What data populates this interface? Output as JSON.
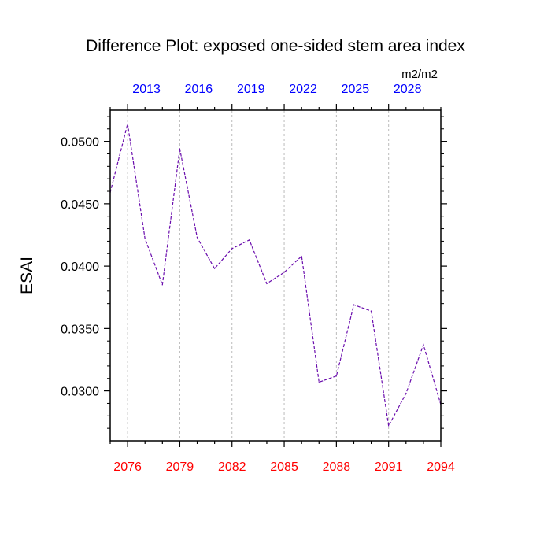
{
  "colors": {
    "bottom_axis": "#ff0000",
    "top_axis": "#0000ff",
    "series_line": "#6a0dad",
    "grid": "#bbbbbb",
    "axis": "#000000"
  },
  "chart_data": {
    "type": "line",
    "title": "Difference Plot: exposed one-sided stem area index",
    "units": "m2/m2",
    "ylabel": "ESAI",
    "xlabel": "",
    "x": [
      2075,
      2076,
      2077,
      2078,
      2079,
      2080,
      2081,
      2082,
      2083,
      2084,
      2085,
      2086,
      2087,
      2088,
      2089,
      2090,
      2091,
      2092,
      2093,
      2094
    ],
    "values": [
      0.0459,
      0.0514,
      0.0422,
      0.0385,
      0.0494,
      0.0423,
      0.0398,
      0.0414,
      0.0421,
      0.0386,
      0.0395,
      0.0408,
      0.0307,
      0.0312,
      0.0369,
      0.0364,
      0.0272,
      0.0298,
      0.0337,
      0.0289
    ],
    "xlim": [
      2075,
      2094
    ],
    "ylim": [
      0.026,
      0.0525
    ],
    "yticks": [
      0.03,
      0.035,
      0.04,
      0.045,
      0.05
    ],
    "ytick_labels": [
      "0.0300",
      "0.0350",
      "0.0400",
      "0.0450",
      "0.0500"
    ],
    "xticks_bottom": [
      2076,
      2079,
      2082,
      2085,
      2088,
      2091,
      2094
    ],
    "xtick_labels_bottom": [
      "2076",
      "2079",
      "2082",
      "2085",
      "2088",
      "2091",
      "2094"
    ],
    "xticks_top_positions": [
      2076,
      2079,
      2082,
      2085,
      2088,
      2091
    ],
    "xtick_labels_top": [
      "2013",
      "2016",
      "2019",
      "2022",
      "2025",
      "2028"
    ],
    "grid": "vertical dashed at bottom ticks",
    "line_style": "dashed"
  }
}
